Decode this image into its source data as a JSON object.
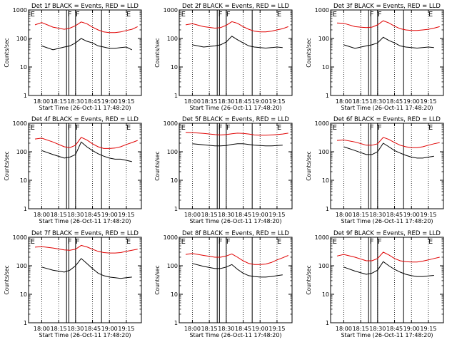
{
  "figure": {
    "xlabel": "Start Time (26-Oct-11 17:48:20)",
    "ylabel": "Counts/sec",
    "x_ticks": [
      "18:00",
      "18:15",
      "18:30",
      "18:45",
      "19:00",
      "19:15"
    ],
    "y_ticks": [
      "1",
      "10",
      "100",
      "1000"
    ],
    "colors": {
      "events": "#000000",
      "lld": "#e00000",
      "axes": "#000000"
    }
  },
  "chart_data": [
    {
      "type": "line",
      "title": "Det 1f BLACK = Events, RED = LLD",
      "y_scale": "log",
      "ylim": [
        1,
        1000
      ],
      "xlim": [
        "17:48:20",
        "19:28:20"
      ],
      "markers": [
        {
          "label": "E",
          "x": "17:50"
        },
        {
          "label": "F",
          "x": "18:23"
        },
        {
          "label": "F",
          "x": "18:30"
        },
        {
          "label": "E",
          "x": "19:15"
        }
      ],
      "vlines": [
        "18:22",
        "18:24",
        "18:30",
        "18:53"
      ],
      "x": [
        "17:54",
        "18:00",
        "18:10",
        "18:20",
        "18:25",
        "18:30",
        "18:35",
        "18:40",
        "18:45",
        "18:50",
        "18:55",
        "19:00",
        "19:05",
        "19:10",
        "19:15",
        "19:20",
        "19:25"
      ],
      "series": [
        {
          "name": "Events",
          "values": [
            null,
            55,
            40,
            50,
            55,
            70,
            100,
            80,
            70,
            55,
            50,
            45,
            45,
            48,
            50,
            40,
            null
          ]
        },
        {
          "name": "LLD",
          "values": [
            300,
            360,
            250,
            210,
            230,
            280,
            380,
            330,
            250,
            200,
            170,
            160,
            160,
            170,
            190,
            210,
            260
          ]
        }
      ]
    },
    {
      "type": "line",
      "title": "Det 2f BLACK = Events, RED = LLD",
      "y_scale": "log",
      "ylim": [
        1,
        1000
      ],
      "xlim": [
        "17:48:20",
        "19:28:20"
      ],
      "markers": [
        {
          "label": "E",
          "x": "17:50"
        },
        {
          "label": "F",
          "x": "18:23"
        },
        {
          "label": "F",
          "x": "18:30"
        },
        {
          "label": "E",
          "x": "19:15"
        }
      ],
      "vlines": [
        "18:22",
        "18:24",
        "18:30",
        "18:53"
      ],
      "x": [
        "17:54",
        "18:00",
        "18:10",
        "18:20",
        "18:25",
        "18:30",
        "18:35",
        "18:40",
        "18:45",
        "18:50",
        "18:55",
        "19:00",
        "19:05",
        "19:10",
        "19:15",
        "19:20",
        "19:25"
      ],
      "series": [
        {
          "name": "Events",
          "values": [
            null,
            60,
            50,
            55,
            60,
            75,
            120,
            90,
            70,
            55,
            50,
            48,
            46,
            48,
            50,
            48,
            null
          ]
        },
        {
          "name": "LLD",
          "values": [
            300,
            330,
            260,
            230,
            240,
            290,
            390,
            340,
            260,
            210,
            180,
            170,
            170,
            180,
            200,
            220,
            260
          ]
        }
      ]
    },
    {
      "type": "line",
      "title": "Det 3f BLACK = Events, RED = LLD",
      "y_scale": "log",
      "ylim": [
        1,
        1000
      ],
      "xlim": [
        "17:48:20",
        "19:28:20"
      ],
      "markers": [
        {
          "label": "E",
          "x": "17:50"
        },
        {
          "label": "F",
          "x": "18:23"
        },
        {
          "label": "F",
          "x": "18:30"
        },
        {
          "label": "E",
          "x": "19:15"
        }
      ],
      "vlines": [
        "18:22",
        "18:24",
        "18:30",
        "18:53"
      ],
      "x": [
        "17:54",
        "18:00",
        "18:10",
        "18:20",
        "18:25",
        "18:30",
        "18:35",
        "18:40",
        "18:45",
        "18:50",
        "18:55",
        "19:00",
        "19:05",
        "19:10",
        "19:15",
        "19:20",
        "19:25"
      ],
      "series": [
        {
          "name": "Events",
          "values": [
            null,
            60,
            45,
            55,
            60,
            70,
            110,
            85,
            70,
            55,
            50,
            48,
            46,
            48,
            50,
            48,
            null
          ]
        },
        {
          "name": "LLD",
          "values": [
            350,
            340,
            260,
            240,
            250,
            300,
            420,
            350,
            270,
            220,
            200,
            190,
            190,
            200,
            210,
            230,
            260
          ]
        }
      ]
    },
    {
      "type": "line",
      "title": "Det 4f BLACK = Events, RED = LLD",
      "y_scale": "log",
      "ylim": [
        1,
        1000
      ],
      "xlim": [
        "17:48:20",
        "19:28:20"
      ],
      "markers": [
        {
          "label": "E",
          "x": "17:50"
        },
        {
          "label": "F",
          "x": "18:23"
        },
        {
          "label": "F",
          "x": "18:30"
        },
        {
          "label": "E",
          "x": "19:15"
        }
      ],
      "vlines": [
        "18:22",
        "18:24",
        "18:30",
        "18:53"
      ],
      "x": [
        "17:54",
        "18:00",
        "18:10",
        "18:20",
        "18:25",
        "18:30",
        "18:35",
        "18:40",
        "18:45",
        "18:50",
        "18:55",
        "19:00",
        "19:05",
        "19:10",
        "19:15",
        "19:20",
        "19:25"
      ],
      "series": [
        {
          "name": "Events",
          "values": [
            null,
            110,
            80,
            60,
            65,
            80,
            220,
            150,
            110,
            85,
            70,
            60,
            55,
            55,
            50,
            45,
            null
          ]
        },
        {
          "name": "LLD",
          "values": [
            280,
            300,
            220,
            150,
            140,
            170,
            320,
            260,
            190,
            150,
            130,
            130,
            135,
            150,
            180,
            210,
            250
          ]
        }
      ]
    },
    {
      "type": "line",
      "title": "Det 5f BLACK = Events, RED = LLD",
      "y_scale": "log",
      "ylim": [
        1,
        1000
      ],
      "xlim": [
        "17:48:20",
        "19:28:20"
      ],
      "markers": [
        {
          "label": "E",
          "x": "17:50"
        },
        {
          "label": "F",
          "x": "18:23"
        },
        {
          "label": "F",
          "x": "18:30"
        },
        {
          "label": "E",
          "x": "19:15"
        }
      ],
      "vlines": [
        "18:22",
        "18:24",
        "18:30",
        "18:53"
      ],
      "x": [
        "17:54",
        "18:00",
        "18:10",
        "18:20",
        "18:25",
        "18:30",
        "18:35",
        "18:40",
        "18:45",
        "18:50",
        "18:55",
        "19:00",
        "19:05",
        "19:10",
        "19:15",
        "19:20",
        "19:25"
      ],
      "series": [
        {
          "name": "Events",
          "values": [
            null,
            190,
            175,
            160,
            160,
            165,
            180,
            190,
            190,
            180,
            170,
            165,
            160,
            160,
            165,
            170,
            null
          ]
        },
        {
          "name": "LLD",
          "values": [
            480,
            470,
            440,
            400,
            390,
            400,
            430,
            450,
            440,
            420,
            390,
            380,
            380,
            390,
            400,
            420,
            450
          ]
        }
      ]
    },
    {
      "type": "line",
      "title": "Det 6f BLACK = Events, RED = LLD",
      "y_scale": "log",
      "ylim": [
        1,
        1000
      ],
      "xlim": [
        "17:48:20",
        "19:28:20"
      ],
      "markers": [
        {
          "label": "E",
          "x": "17:50"
        },
        {
          "label": "F",
          "x": "18:23"
        },
        {
          "label": "F",
          "x": "18:30"
        },
        {
          "label": "E",
          "x": "19:15"
        }
      ],
      "vlines": [
        "18:22",
        "18:24",
        "18:30",
        "18:53"
      ],
      "x": [
        "17:54",
        "18:00",
        "18:10",
        "18:20",
        "18:25",
        "18:30",
        "18:35",
        "18:40",
        "18:45",
        "18:50",
        "18:55",
        "19:00",
        "19:05",
        "19:10",
        "19:15",
        "19:20",
        "19:25"
      ],
      "series": [
        {
          "name": "Events",
          "values": [
            null,
            150,
            110,
            80,
            80,
            100,
            200,
            150,
            110,
            90,
            75,
            65,
            60,
            60,
            65,
            70,
            null
          ]
        },
        {
          "name": "LLD",
          "values": [
            250,
            260,
            220,
            170,
            170,
            190,
            320,
            270,
            210,
            170,
            150,
            140,
            140,
            150,
            170,
            190,
            210
          ]
        }
      ]
    },
    {
      "type": "line",
      "title": "Det 7f BLACK = Events, RED = LLD",
      "y_scale": "log",
      "ylim": [
        1,
        1000
      ],
      "xlim": [
        "17:48:20",
        "19:28:20"
      ],
      "markers": [
        {
          "label": "E",
          "x": "17:50"
        },
        {
          "label": "F",
          "x": "18:23"
        },
        {
          "label": "F",
          "x": "18:30"
        },
        {
          "label": "E",
          "x": "19:15"
        }
      ],
      "vlines": [
        "18:22",
        "18:24",
        "18:30",
        "18:53"
      ],
      "x": [
        "17:54",
        "18:00",
        "18:10",
        "18:20",
        "18:25",
        "18:30",
        "18:35",
        "18:40",
        "18:45",
        "18:50",
        "18:55",
        "19:00",
        "19:05",
        "19:10",
        "19:15",
        "19:20",
        "19:25"
      ],
      "series": [
        {
          "name": "Events",
          "values": [
            null,
            90,
            70,
            60,
            70,
            100,
            180,
            120,
            80,
            55,
            45,
            40,
            38,
            36,
            38,
            40,
            null
          ]
        },
        {
          "name": "LLD",
          "values": [
            450,
            470,
            420,
            360,
            350,
            380,
            520,
            460,
            380,
            320,
            290,
            280,
            280,
            290,
            320,
            350,
            380
          ]
        }
      ]
    },
    {
      "type": "line",
      "title": "Det 8f BLACK = Events, RED = LLD",
      "y_scale": "log",
      "ylim": [
        1,
        1000
      ],
      "xlim": [
        "17:48:20",
        "19:28:20"
      ],
      "markers": [
        {
          "label": "E",
          "x": "17:50"
        },
        {
          "label": "F",
          "x": "18:23"
        },
        {
          "label": "F",
          "x": "18:30"
        },
        {
          "label": "E",
          "x": "19:15"
        }
      ],
      "vlines": [
        "18:22",
        "18:24",
        "18:30",
        "18:53"
      ],
      "x": [
        "17:54",
        "18:00",
        "18:10",
        "18:20",
        "18:25",
        "18:30",
        "18:35",
        "18:40",
        "18:45",
        "18:50",
        "18:55",
        "19:00",
        "19:05",
        "19:10",
        "19:15",
        "19:20",
        "19:25"
      ],
      "series": [
        {
          "name": "Events",
          "values": [
            null,
            120,
            95,
            80,
            80,
            90,
            110,
            75,
            55,
            45,
            42,
            40,
            40,
            42,
            45,
            48,
            null
          ]
        },
        {
          "name": "LLD",
          "values": [
            250,
            270,
            230,
            200,
            200,
            220,
            260,
            200,
            150,
            120,
            110,
            110,
            115,
            130,
            160,
            190,
            230
          ]
        }
      ]
    },
    {
      "type": "line",
      "title": "Det 9f BLACK = Events, RED = LLD",
      "y_scale": "log",
      "ylim": [
        1,
        1000
      ],
      "xlim": [
        "17:48:20",
        "19:28:20"
      ],
      "markers": [
        {
          "label": "E",
          "x": "17:50"
        },
        {
          "label": "F",
          "x": "18:23"
        },
        {
          "label": "F",
          "x": "18:30"
        },
        {
          "label": "E",
          "x": "19:15"
        }
      ],
      "vlines": [
        "18:22",
        "18:24",
        "18:30",
        "18:53"
      ],
      "x": [
        "17:54",
        "18:00",
        "18:10",
        "18:20",
        "18:25",
        "18:30",
        "18:35",
        "18:40",
        "18:45",
        "18:50",
        "18:55",
        "19:00",
        "19:05",
        "19:10",
        "19:15",
        "19:20",
        "19:25"
      ],
      "series": [
        {
          "name": "Events",
          "values": [
            null,
            90,
            65,
            50,
            55,
            70,
            140,
            100,
            75,
            60,
            50,
            45,
            42,
            42,
            44,
            46,
            null
          ]
        },
        {
          "name": "LLD",
          "values": [
            220,
            250,
            200,
            150,
            150,
            180,
            300,
            240,
            180,
            150,
            140,
            135,
            135,
            145,
            160,
            180,
            200
          ]
        }
      ]
    }
  ]
}
